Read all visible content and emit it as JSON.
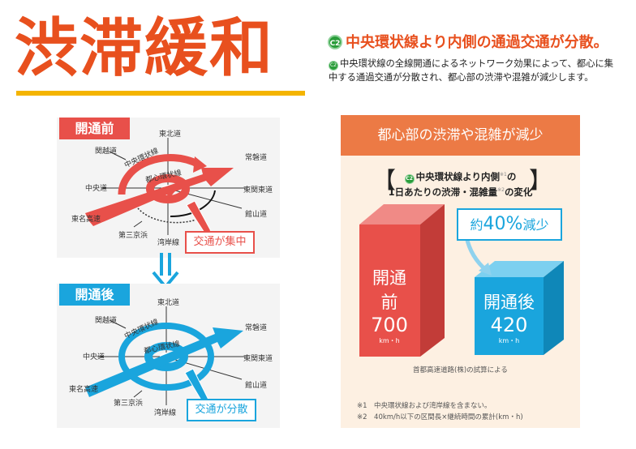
{
  "title": "渋滞緩和",
  "headline": {
    "badge": "C2",
    "text": "中央環状線より内側の通過交通が分散。"
  },
  "description": "中央環状線の全線開通によるネットワーク効果によって、都心に集中する通過交通が分散され、都心部の渋滞や混雑が減少します。",
  "before": {
    "label": "開通前",
    "callout": "交通が集中",
    "color": "#e8504a",
    "roads": {
      "tohoku": "東北道",
      "kanetsu": "関越道",
      "chuo": "中央道",
      "tomei": "東名高速",
      "daisan": "第三京浜",
      "wangan": "湾岸線",
      "joban": "常磐道",
      "higashikanto": "東関東道",
      "tateyama": "館山道"
    },
    "rings": {
      "outer": "中央環状線",
      "inner": "都心環状線"
    }
  },
  "after": {
    "label": "開通後",
    "callout": "交通が分散",
    "color": "#1aa5dd",
    "roads": {
      "tohoku": "東北道",
      "kanetsu": "関越道",
      "chuo": "中央道",
      "tomei": "東名高速",
      "daisan": "第三京浜",
      "wangan": "湾岸線",
      "joban": "常磐道",
      "higashikanto": "東関東道",
      "tateyama": "館山道"
    },
    "rings": {
      "outer": "中央環状線",
      "inner": "都心環状線"
    }
  },
  "result": {
    "header": "都心部の渋滞や混雑が減少",
    "subtitle_line1": "中央環状線より内側",
    "subtitle_note1": "※1",
    "subtitle_of": "の",
    "subtitle_line2": "1日あたりの渋滞・混雑量",
    "subtitle_note2": "※2",
    "subtitle_change": "の変化",
    "reduction": {
      "prefix": "約",
      "value": "40%",
      "suffix": "減少"
    },
    "bars": [
      {
        "label": "開通前",
        "value": "700",
        "unit": "km・h",
        "color": "#e8504a"
      },
      {
        "label": "開通後",
        "value": "420",
        "unit": "km・h",
        "color": "#1aa5dd"
      }
    ],
    "source": "首都高速道路(株)の試算による",
    "footnotes": [
      "※1　中央環状線および湾岸線を含まない。",
      "※2　40km/h以下の区間長×継続時間の累計(km・h)"
    ]
  }
}
